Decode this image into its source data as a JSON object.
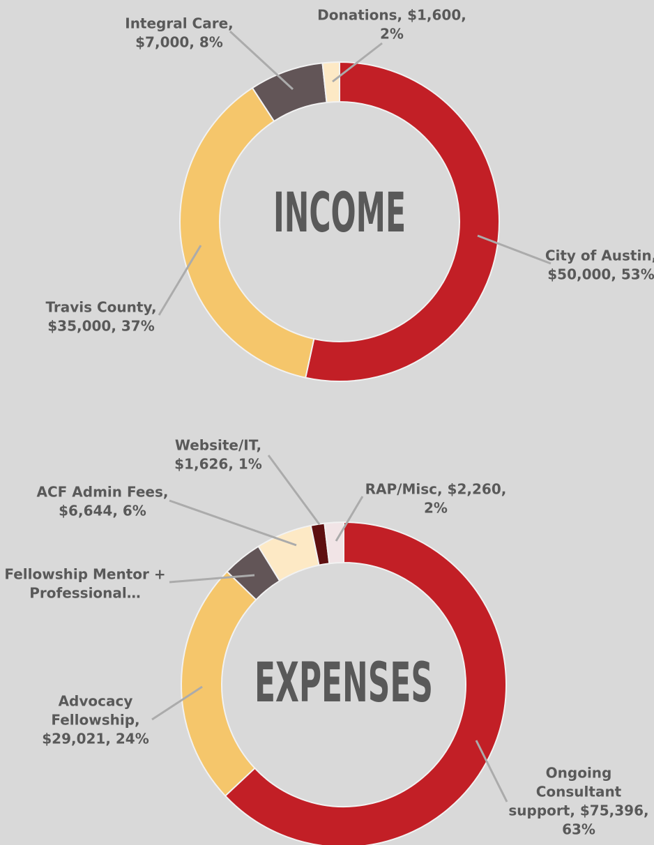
{
  "chart_data": [
    {
      "type": "donut",
      "center_label": "INCOME",
      "categories": [
        "City of Austin",
        "Travis County",
        "Integral Care",
        "Donations"
      ],
      "values": [
        50000,
        35000,
        7000,
        1600
      ],
      "colors": [
        "#c21f26",
        "#f5c66b",
        "#625557",
        "#fde9c5"
      ],
      "data_labels": [
        [
          "City of Austin,",
          "$50,000, 53%"
        ],
        [
          "Travis County,",
          "$35,000, 37%"
        ],
        [
          "Integral Care,",
          "$7,000, 8%"
        ],
        [
          "Donations, $1,600,",
          "2%"
        ]
      ]
    },
    {
      "type": "donut",
      "center_label": "EXPENSES",
      "categories": [
        "Ongoing Consultant support",
        "Advocacy Fellowship",
        "Fellowship Mentor + Professional…",
        "ACF Admin Fees",
        "Website/IT",
        "RAP/Misc"
      ],
      "values": [
        75396,
        29021,
        4729,
        6644,
        1626,
        2260
      ],
      "colors": [
        "#c21f26",
        "#f5c66b",
        "#625557",
        "#fde9c5",
        "#5e0f10",
        "#f1e4e6"
      ],
      "data_labels": [
        [
          "Ongoing",
          "Consultant",
          "support, $75,396,",
          "63%"
        ],
        [
          "Advocacy",
          "Fellowship,",
          "$29,021, 24%"
        ],
        [
          "Fellowship Mentor +",
          "Professional…"
        ],
        [
          "ACF Admin Fees,",
          "$6,644, 6%"
        ],
        [
          "Website/IT,",
          "$1,626, 1%"
        ],
        [
          "RAP/Misc, $2,260,",
          "2%"
        ]
      ]
    }
  ]
}
